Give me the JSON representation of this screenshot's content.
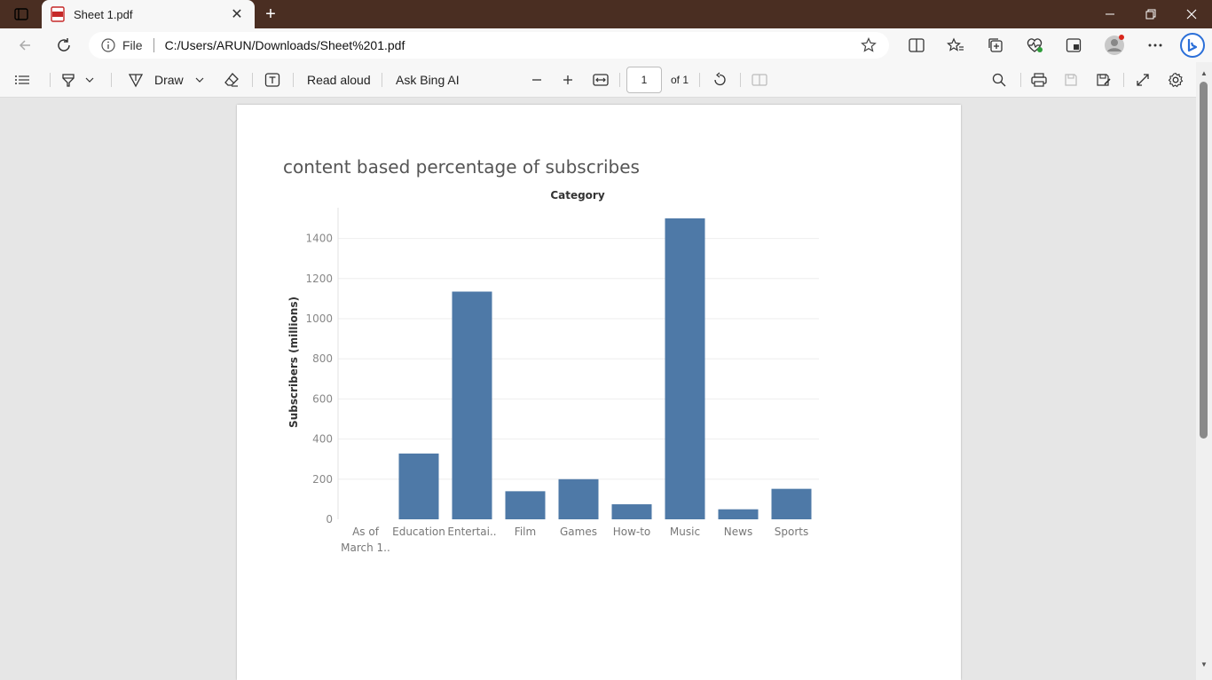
{
  "tab": {
    "title": "Sheet 1.pdf",
    "close": "✕"
  },
  "window": {
    "newtab": "+"
  },
  "address": {
    "file_label": "File",
    "url": "C:/Users/ARUN/Downloads/Sheet%201.pdf"
  },
  "pdf_toolbar": {
    "draw_label": "Draw",
    "read_aloud_label": "Read aloud",
    "ask_bing_label": "Ask Bing AI",
    "page_number": "1",
    "page_of": "of 1"
  },
  "chart_data": {
    "type": "bar",
    "title": "content based percentage of subscribes",
    "column_header": "Category",
    "ylabel": "Subscribers (millions)",
    "ylim": [
      0,
      1500
    ],
    "yticks": [
      0,
      200,
      400,
      600,
      800,
      1000,
      1200,
      1400
    ],
    "categories": [
      [
        "As of",
        "March 1.."
      ],
      [
        "Education"
      ],
      [
        "Entertai.."
      ],
      [
        "Film"
      ],
      [
        "Games"
      ],
      [
        "How-to"
      ],
      [
        "Music"
      ],
      [
        "News"
      ],
      [
        "Sports"
      ]
    ],
    "values": [
      0,
      328,
      1135,
      140,
      200,
      75,
      1500,
      50,
      152
    ],
    "bar_color": "#4e79a7",
    "grid": true
  }
}
